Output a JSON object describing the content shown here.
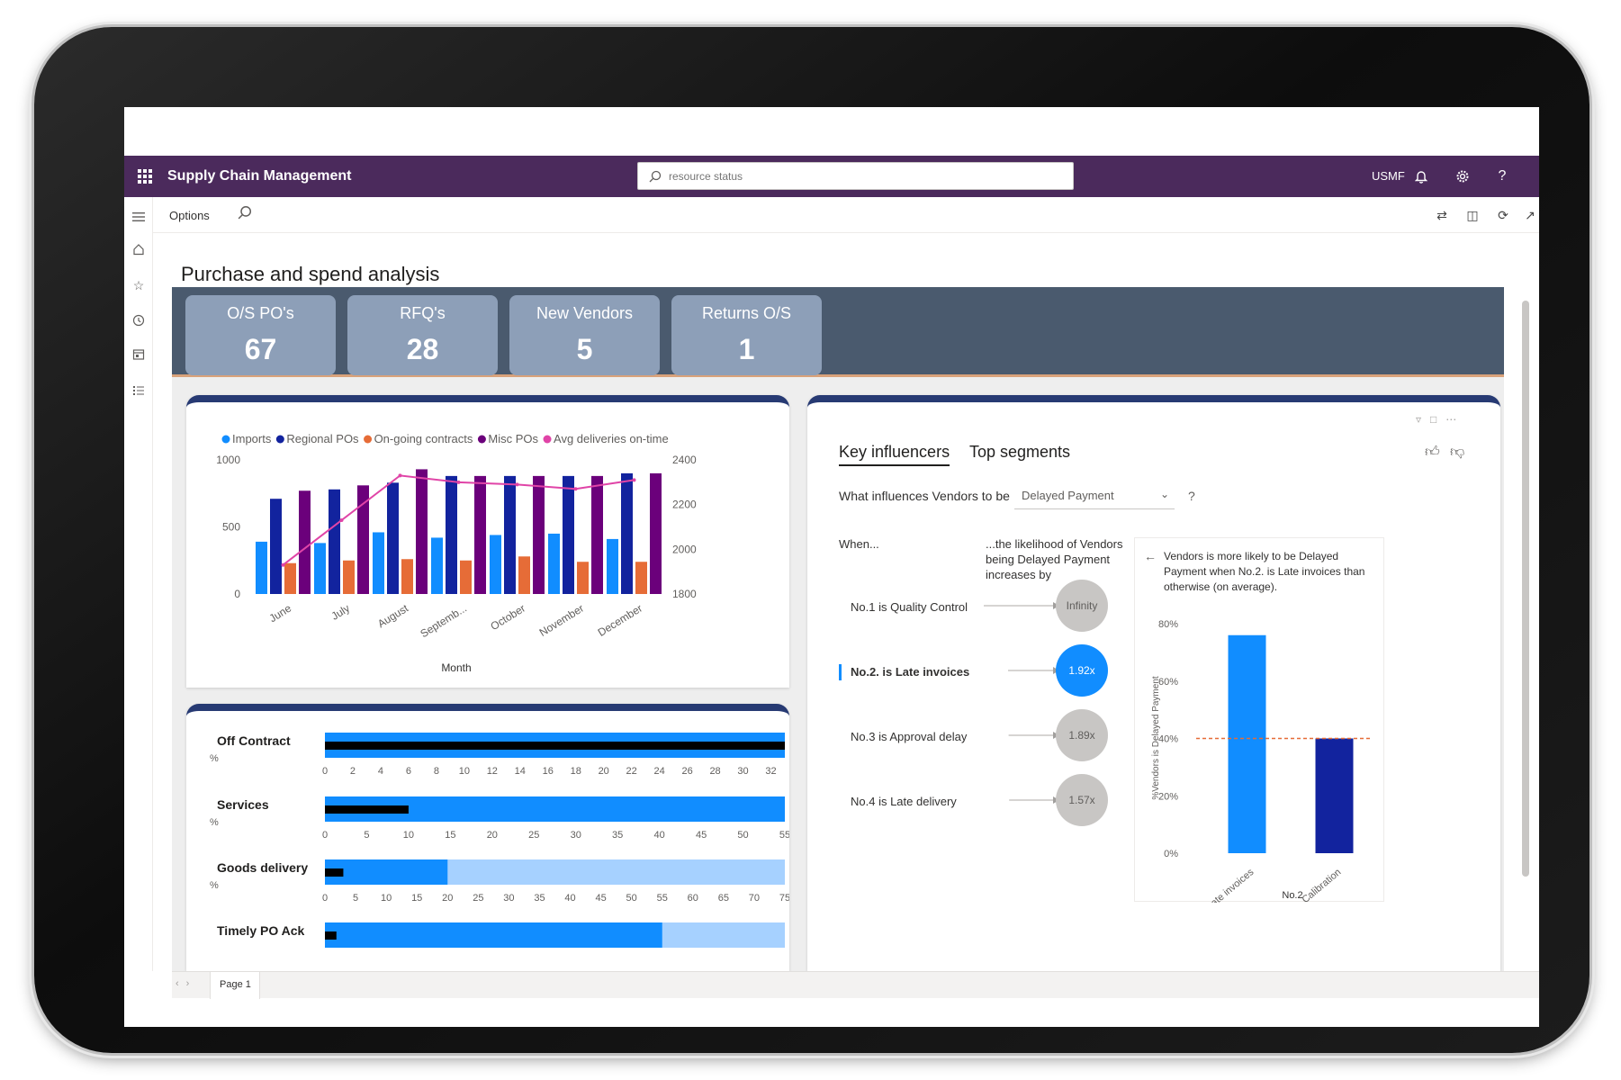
{
  "app": {
    "title": "Supply Chain Management",
    "company": "USMF"
  },
  "search": {
    "placeholder": "resource status"
  },
  "command_bar": {
    "options_label": "Options"
  },
  "page": {
    "title": "Purchase and spend analysis"
  },
  "kpis": [
    {
      "label": "O/S PO's",
      "value": "67"
    },
    {
      "label": "RFQ's",
      "value": "28"
    },
    {
      "label": "New Vendors",
      "value": "5"
    },
    {
      "label": "Returns O/S",
      "value": "1"
    }
  ],
  "icons": {
    "waffle": "waffle-icon",
    "bell": "bell-icon",
    "settings": "gear-icon",
    "help": "help-icon",
    "search": "search-icon",
    "hamburger": "hamburger-icon",
    "home": "home-icon",
    "favorites": "star-icon",
    "recent": "clock-icon",
    "workspaces": "workspace-icon",
    "modules": "list-icon"
  },
  "colors": {
    "topbar": "#4b2a5c",
    "kpi_band": "#4a5a6e",
    "kpi_tile": "#8d9fb8",
    "panel_accent": "#273a73",
    "imports": "#118dff",
    "regional": "#12239e",
    "ongoing": "#e66c37",
    "misc": "#6b007b",
    "avg": "#e044a7",
    "bar_light": "#a6d1ff"
  },
  "chart_data": [
    {
      "type": "bar",
      "xlabel": "Month",
      "categories": [
        "June",
        "July",
        "August",
        "Septemb...",
        "October",
        "November",
        "December"
      ],
      "legend": [
        "Imports",
        "Regional POs",
        "On-going contracts",
        "Misc POs",
        "Avg deliveries on-time"
      ],
      "y_left_ticks": [
        "1000",
        "500",
        "0"
      ],
      "y_right_ticks": [
        "2400",
        "2200",
        "2000",
        "1800"
      ],
      "ylim": [
        0,
        1000
      ],
      "y2lim": [
        1800,
        2400
      ],
      "series": [
        {
          "name": "Imports",
          "values": [
            390,
            380,
            460,
            420,
            440,
            450,
            410
          ]
        },
        {
          "name": "Regional POs",
          "values": [
            710,
            780,
            830,
            880,
            880,
            880,
            900
          ]
        },
        {
          "name": "On-going contracts",
          "values": [
            230,
            250,
            260,
            250,
            280,
            240,
            240
          ]
        },
        {
          "name": "Misc POs",
          "values": [
            770,
            810,
            930,
            880,
            880,
            880,
            900
          ]
        },
        {
          "name": "Avg deliveries on-time",
          "axis": "right",
          "values": [
            1930,
            2130,
            2330,
            2300,
            2290,
            2270,
            2310
          ]
        }
      ]
    },
    {
      "type": "bar",
      "orientation": "horizontal",
      "unit_label": "%",
      "rows": [
        {
          "label": "Off Contract",
          "target": 33,
          "actual": 33,
          "max": 33,
          "ticks": [
            "0",
            "2",
            "4",
            "6",
            "8",
            "10",
            "12",
            "14",
            "16",
            "18",
            "20",
            "22",
            "24",
            "26",
            "28",
            "30",
            "32"
          ]
        },
        {
          "label": "Services",
          "target": 55,
          "actual": 10,
          "max": 55,
          "ticks": [
            "0",
            "5",
            "10",
            "15",
            "20",
            "25",
            "30",
            "35",
            "40",
            "45",
            "50",
            "55"
          ]
        },
        {
          "label": "Goods delivery",
          "target": 20,
          "actual": 3,
          "max": 75,
          "ticks": [
            "0",
            "5",
            "10",
            "15",
            "20",
            "25",
            "30",
            "35",
            "40",
            "45",
            "50",
            "55",
            "60",
            "65",
            "70",
            "75"
          ]
        },
        {
          "label": "Timely PO Ack",
          "target": 44,
          "actual": 1.5,
          "max": 60,
          "ticks": []
        }
      ]
    },
    {
      "type": "bar",
      "title": "Vendors is more likely to be Delayed Payment when No.2. is Late invoices than otherwise (on average).",
      "xlabel": "No.2",
      "ylabel": "%Vendors is Delayed Payment",
      "categories": [
        "Late invoices",
        "Calibration"
      ],
      "values": [
        76,
        40
      ],
      "y_ticks": [
        "80%",
        "60%",
        "40%",
        "20%",
        "0%"
      ],
      "ylim": [
        0,
        80
      ],
      "reference_line": 40
    }
  ],
  "key_influencers": {
    "tab_1": "Key influencers",
    "tab_2": "Top segments",
    "question": "What influences Vendors to be",
    "selected": "Delayed Payment",
    "help": "?",
    "when_label": "When...",
    "likelihood_label": "...the likelihood of Vendors being Delayed Payment increases by",
    "influencers": [
      {
        "label": "No.1 is Quality Control",
        "value": "Infinity",
        "strength": 0.9
      },
      {
        "label": "No.2. is Late invoices",
        "value": "1.92x",
        "strength": 0.45,
        "selected": true
      },
      {
        "label": "No.3 is Approval delay",
        "value": "1.89x",
        "strength": 0.44
      },
      {
        "label": "No.4 is Late delivery",
        "value": "1.57x",
        "strength": 0.43
      }
    ],
    "detail": "Vendors is more likely to be Delayed Payment when No.2. is Late invoices than otherwise (on average)."
  },
  "footer": {
    "page_tab": "Page 1"
  }
}
